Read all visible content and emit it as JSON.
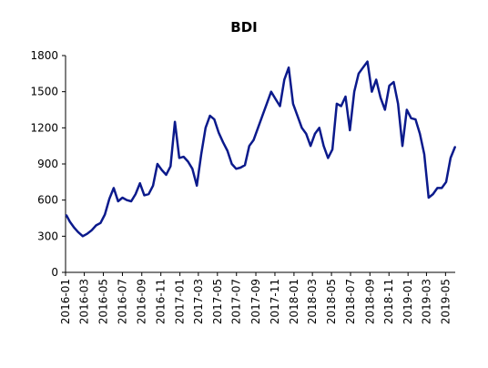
{
  "chart_data": {
    "type": "line",
    "title": "BDI",
    "xlabel": "",
    "ylabel": "",
    "ylim": [
      0,
      1800
    ],
    "y_ticks": [
      "0",
      "300",
      "600",
      "900",
      "1200",
      "1500",
      "1800"
    ],
    "x_ticks": [
      "2016-01",
      "2016-03",
      "2016-05",
      "2016-07",
      "2016-09",
      "2016-11",
      "2017-01",
      "2017-03",
      "2017-05",
      "2017-07",
      "2017-09",
      "2017-11",
      "2018-01",
      "2018-03",
      "2018-05",
      "2018-07",
      "2018-09",
      "2018-11",
      "2019-01",
      "2019-03",
      "2019-05"
    ],
    "grid": false,
    "legend": "none",
    "color": "#0b1a8c",
    "series": [
      {
        "x": [
          "2016-01-04",
          "2016-01-15",
          "2016-01-29",
          "2016-02-10",
          "2016-02-25",
          "2016-03-10",
          "2016-03-25",
          "2016-04-08",
          "2016-04-22",
          "2016-05-06",
          "2016-05-20",
          "2016-06-03",
          "2016-06-17",
          "2016-07-01",
          "2016-07-15",
          "2016-07-29",
          "2016-08-12",
          "2016-08-26",
          "2016-09-09",
          "2016-09-23",
          "2016-10-07",
          "2016-10-21",
          "2016-11-04",
          "2016-11-18",
          "2016-12-02",
          "2016-12-16",
          "2016-12-30",
          "2017-01-13",
          "2017-01-27",
          "2017-02-10",
          "2017-02-24",
          "2017-03-10",
          "2017-03-24",
          "2017-04-07",
          "2017-04-21",
          "2017-05-05",
          "2017-05-19",
          "2017-06-02",
          "2017-06-16",
          "2017-06-30",
          "2017-07-14",
          "2017-07-28",
          "2017-08-11",
          "2017-08-25",
          "2017-09-08",
          "2017-09-22",
          "2017-10-06",
          "2017-10-20",
          "2017-11-03",
          "2017-11-17",
          "2017-12-01",
          "2017-12-15",
          "2017-12-29",
          "2018-01-12",
          "2018-01-26",
          "2018-02-09",
          "2018-02-23",
          "2018-03-09",
          "2018-03-23",
          "2018-04-06",
          "2018-04-20",
          "2018-05-04",
          "2018-05-18",
          "2018-06-01",
          "2018-06-15",
          "2018-06-29",
          "2018-07-13",
          "2018-07-27",
          "2018-08-10",
          "2018-08-24",
          "2018-09-07",
          "2018-09-21",
          "2018-10-05",
          "2018-10-19",
          "2018-11-02",
          "2018-11-16",
          "2018-11-30",
          "2018-12-14",
          "2018-12-28",
          "2019-01-11",
          "2019-01-25",
          "2019-02-08",
          "2019-02-22",
          "2019-03-08",
          "2019-03-22",
          "2019-04-05",
          "2019-04-19",
          "2019-05-03",
          "2019-05-17",
          "2019-05-31"
        ],
        "values": [
          473,
          420,
          370,
          335,
          300,
          320,
          350,
          390,
          410,
          480,
          610,
          700,
          590,
          620,
          600,
          590,
          650,
          740,
          640,
          650,
          720,
          900,
          850,
          810,
          880,
          1250,
          950,
          960,
          920,
          860,
          720,
          980,
          1200,
          1300,
          1270,
          1160,
          1080,
          1010,
          900,
          860,
          870,
          890,
          1050,
          1100,
          1200,
          1300,
          1400,
          1500,
          1440,
          1380,
          1600,
          1700,
          1400,
          1300,
          1200,
          1150,
          1050,
          1150,
          1200,
          1050,
          950,
          1020,
          1400,
          1380,
          1460,
          1180,
          1500,
          1650,
          1700,
          1750,
          1500,
          1600,
          1450,
          1350,
          1550,
          1580,
          1400,
          1050,
          1350,
          1280,
          1270,
          1150,
          980,
          620,
          650,
          700,
          700,
          750,
          950,
          1040
        ]
      }
    ]
  }
}
